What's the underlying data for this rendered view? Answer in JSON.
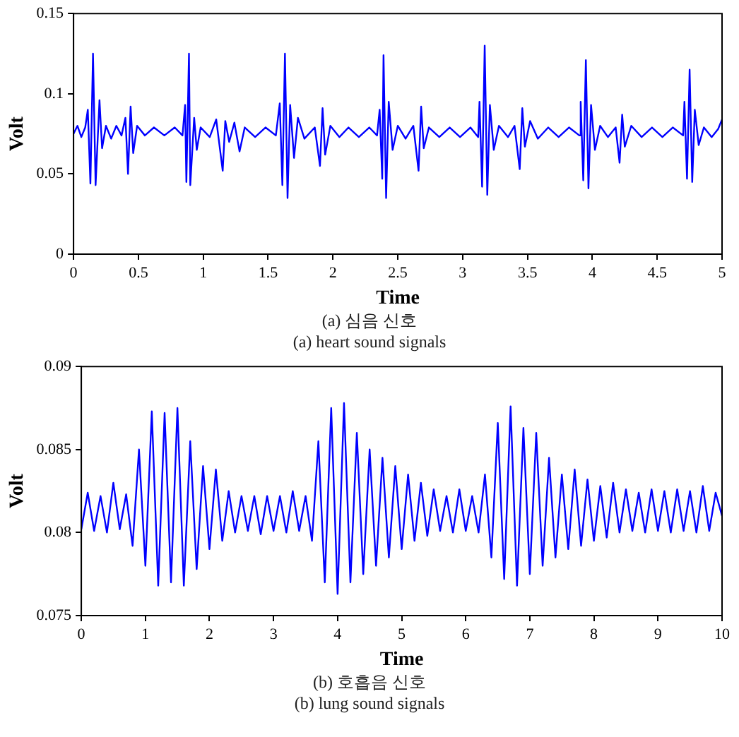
{
  "chart_data": [
    {
      "type": "line",
      "xlabel": "Time",
      "ylabel": "Volt",
      "xlim": [
        0,
        5
      ],
      "ylim": [
        0,
        0.15
      ],
      "xticks": [
        0,
        0.5,
        1,
        1.5,
        2,
        2.5,
        3,
        3.5,
        4,
        4.5,
        5
      ],
      "yticks": [
        0,
        0.05,
        0.1,
        0.15
      ],
      "grid": false,
      "legend": false,
      "marker": "none",
      "line_style": "solid",
      "annotations": [
        "(a) 심음 신호",
        "(a) heart sound signals"
      ],
      "series": [
        {
          "color": "#0000ff",
          "x": [
            0,
            0.03,
            0.06,
            0.09,
            0.11,
            0.13,
            0.15,
            0.17,
            0.2,
            0.22,
            0.25,
            0.29,
            0.33,
            0.37,
            0.4,
            0.42,
            0.44,
            0.46,
            0.49,
            0.55,
            0.62,
            0.7,
            0.78,
            0.84,
            0.86,
            0.87,
            0.89,
            0.9,
            0.93,
            0.95,
            0.98,
            1.05,
            1.1,
            1.15,
            1.17,
            1.2,
            1.24,
            1.28,
            1.32,
            1.4,
            1.48,
            1.56,
            1.59,
            1.61,
            1.63,
            1.65,
            1.67,
            1.7,
            1.73,
            1.78,
            1.86,
            1.9,
            1.92,
            1.94,
            1.98,
            2.05,
            2.12,
            2.2,
            2.28,
            2.34,
            2.36,
            2.38,
            2.39,
            2.41,
            2.43,
            2.46,
            2.5,
            2.56,
            2.62,
            2.66,
            2.68,
            2.7,
            2.74,
            2.82,
            2.9,
            2.98,
            3.06,
            3.12,
            3.13,
            3.15,
            3.17,
            3.19,
            3.21,
            3.24,
            3.28,
            3.35,
            3.4,
            3.44,
            3.46,
            3.48,
            3.52,
            3.58,
            3.66,
            3.74,
            3.82,
            3.9,
            3.91,
            3.93,
            3.95,
            3.97,
            3.99,
            4.02,
            4.06,
            4.12,
            4.18,
            4.21,
            4.23,
            4.25,
            4.3,
            4.38,
            4.46,
            4.54,
            4.62,
            4.7,
            4.71,
            4.73,
            4.75,
            4.77,
            4.79,
            4.82,
            4.86,
            4.92,
            4.97,
            5
          ],
          "values": [
            0.075,
            0.08,
            0.073,
            0.079,
            0.09,
            0.044,
            0.125,
            0.043,
            0.096,
            0.066,
            0.08,
            0.072,
            0.08,
            0.074,
            0.085,
            0.05,
            0.092,
            0.063,
            0.08,
            0.074,
            0.079,
            0.074,
            0.079,
            0.074,
            0.093,
            0.045,
            0.125,
            0.043,
            0.085,
            0.065,
            0.079,
            0.073,
            0.084,
            0.052,
            0.083,
            0.07,
            0.082,
            0.064,
            0.079,
            0.073,
            0.079,
            0.074,
            0.094,
            0.043,
            0.125,
            0.035,
            0.093,
            0.06,
            0.085,
            0.072,
            0.079,
            0.055,
            0.091,
            0.062,
            0.08,
            0.073,
            0.079,
            0.073,
            0.079,
            0.074,
            0.09,
            0.047,
            0.124,
            0.035,
            0.095,
            0.065,
            0.08,
            0.072,
            0.08,
            0.052,
            0.092,
            0.066,
            0.079,
            0.073,
            0.079,
            0.073,
            0.079,
            0.073,
            0.095,
            0.042,
            0.13,
            0.037,
            0.093,
            0.065,
            0.08,
            0.073,
            0.08,
            0.053,
            0.091,
            0.067,
            0.083,
            0.072,
            0.079,
            0.073,
            0.079,
            0.074,
            0.095,
            0.046,
            0.121,
            0.041,
            0.093,
            0.065,
            0.08,
            0.073,
            0.079,
            0.057,
            0.087,
            0.067,
            0.08,
            0.073,
            0.079,
            0.073,
            0.079,
            0.074,
            0.095,
            0.047,
            0.115,
            0.045,
            0.09,
            0.068,
            0.079,
            0.073,
            0.078,
            0.084
          ]
        }
      ]
    },
    {
      "type": "line",
      "xlabel": "Time",
      "ylabel": "Volt",
      "xlim": [
        0,
        10
      ],
      "ylim": [
        0.075,
        0.09
      ],
      "xticks": [
        0,
        1,
        2,
        3,
        4,
        5,
        6,
        7,
        8,
        9,
        10
      ],
      "yticks": [
        0.075,
        0.08,
        0.085,
        0.09
      ],
      "grid": false,
      "legend": false,
      "marker": "none",
      "line_style": "solid",
      "annotations": [
        "(b) 호흡음 신호",
        "(b) lung sound signals"
      ],
      "series": [
        {
          "color": "#0000ff",
          "x": [
            0,
            0.1,
            0.2,
            0.3,
            0.4,
            0.5,
            0.6,
            0.7,
            0.8,
            0.9,
            1,
            1.1,
            1.2,
            1.3,
            1.4,
            1.5,
            1.6,
            1.7,
            1.8,
            1.9,
            2,
            2.1,
            2.2,
            2.3,
            2.4,
            2.5,
            2.6,
            2.7,
            2.8,
            2.9,
            3,
            3.1,
            3.2,
            3.3,
            3.4,
            3.5,
            3.6,
            3.7,
            3.8,
            3.9,
            4,
            4.1,
            4.2,
            4.3,
            4.4,
            4.5,
            4.6,
            4.7,
            4.8,
            4.9,
            5,
            5.1,
            5.2,
            5.3,
            5.4,
            5.5,
            5.6,
            5.7,
            5.8,
            5.9,
            6,
            6.1,
            6.2,
            6.3,
            6.4,
            6.5,
            6.6,
            6.7,
            6.8,
            6.9,
            7,
            7.1,
            7.2,
            7.3,
            7.4,
            7.5,
            7.6,
            7.7,
            7.8,
            7.9,
            8,
            8.1,
            8.2,
            8.3,
            8.4,
            8.5,
            8.6,
            8.7,
            8.8,
            8.9,
            9,
            9.1,
            9.2,
            9.3,
            9.4,
            9.5,
            9.6,
            9.7,
            9.8,
            9.9,
            10
          ],
          "values": [
            0.0802,
            0.0824,
            0.0801,
            0.0822,
            0.08,
            0.083,
            0.0802,
            0.0823,
            0.0792,
            0.085,
            0.078,
            0.0873,
            0.0768,
            0.0872,
            0.077,
            0.0875,
            0.0768,
            0.0855,
            0.0778,
            0.084,
            0.079,
            0.0838,
            0.0795,
            0.0825,
            0.08,
            0.0822,
            0.0801,
            0.0822,
            0.0799,
            0.0822,
            0.0801,
            0.0822,
            0.08,
            0.0825,
            0.0801,
            0.0822,
            0.0795,
            0.0855,
            0.077,
            0.0875,
            0.0763,
            0.0878,
            0.077,
            0.086,
            0.0775,
            0.085,
            0.078,
            0.0845,
            0.0785,
            0.084,
            0.079,
            0.0835,
            0.0795,
            0.083,
            0.0798,
            0.0826,
            0.0801,
            0.0822,
            0.08,
            0.0826,
            0.0801,
            0.0822,
            0.08,
            0.0835,
            0.0785,
            0.0866,
            0.0772,
            0.0876,
            0.0768,
            0.0863,
            0.0775,
            0.086,
            0.078,
            0.0845,
            0.0785,
            0.0835,
            0.079,
            0.0838,
            0.0792,
            0.0832,
            0.0795,
            0.0828,
            0.0797,
            0.083,
            0.08,
            0.0826,
            0.0801,
            0.0824,
            0.08,
            0.0826,
            0.0801,
            0.0825,
            0.08,
            0.0826,
            0.0801,
            0.0825,
            0.08,
            0.0828,
            0.0801,
            0.0824,
            0.081
          ]
        }
      ]
    }
  ]
}
